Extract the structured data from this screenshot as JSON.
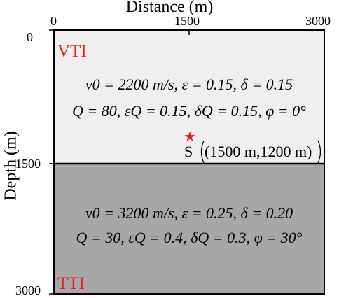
{
  "axes": {
    "x_label": "Distance (m)",
    "y_label": "Depth (m)",
    "x_ticks": [
      "0",
      "1500",
      "3000"
    ],
    "y_ticks": [
      "0",
      "1500",
      "3000"
    ]
  },
  "layers": [
    {
      "name": "VTI",
      "fill": "#efefef",
      "line1": "v0 = 2200 m/s, ε = 0.15, δ = 0.15",
      "line2": "Q = 80, εQ = 0.15, δQ = 0.15, φ = 0°"
    },
    {
      "name": "TTI",
      "fill": "#a7a7a7",
      "line1": "v0 = 3200 m/s, ε = 0.25, δ = 0.20",
      "line2": "Q = 30, εQ = 0.4, δQ = 0.3, φ = 30°"
    }
  ],
  "source": {
    "label": "S",
    "coords": "(1500 m,1200 m)",
    "marker_color": "#e32219"
  },
  "colors": {
    "label_red": "#e32219"
  }
}
